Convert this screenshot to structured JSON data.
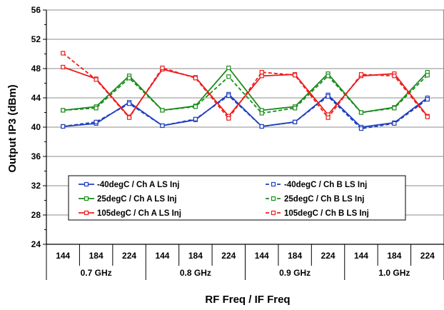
{
  "chart_data": {
    "type": "line",
    "title": "",
    "xlabel": "RF Freq / IF Freq",
    "ylabel": "Output IP3 (dBm)",
    "ylim": [
      24,
      56
    ],
    "yticks": [
      "24",
      "28",
      "32",
      "36",
      "40",
      "44",
      "48",
      "52",
      "56"
    ],
    "categories": [
      "144",
      "184",
      "224",
      "144",
      "184",
      "224",
      "144",
      "184",
      "224",
      "144",
      "184",
      "224"
    ],
    "groups": [
      {
        "label": "0.7 GHz",
        "span": 3
      },
      {
        "label": "0.8 GHz",
        "span": 3
      },
      {
        "label": "0.9 GHz",
        "span": 3
      },
      {
        "label": "1.0 GHz",
        "span": 3
      }
    ],
    "grid": "horizontal",
    "legend_position": "inside-bottom",
    "series": [
      {
        "name": "-40degC /  Ch A LS Inj",
        "color": "#1f3fbf",
        "dash": false,
        "values": [
          40.1,
          40.5,
          43.4,
          40.2,
          41.0,
          44.5,
          40.1,
          40.7,
          44.4,
          40.0,
          40.6,
          44.0
        ]
      },
      {
        "name": "-40degC /  Ch B LS Inj",
        "color": "#1f3fbf",
        "dash": true,
        "values": [
          40.1,
          40.7,
          43.2,
          40.2,
          41.1,
          44.3,
          40.1,
          40.7,
          44.2,
          39.8,
          40.5,
          43.8
        ]
      },
      {
        "name": "25degC /  Ch A LS Inj",
        "color": "#1c8c1c",
        "dash": false,
        "values": [
          42.3,
          42.8,
          47.0,
          42.3,
          42.9,
          48.1,
          42.3,
          42.8,
          47.3,
          42.0,
          42.7,
          47.5
        ]
      },
      {
        "name": "25degC /  Ch B LS Inj",
        "color": "#1c8c1c",
        "dash": true,
        "values": [
          42.3,
          42.6,
          46.7,
          42.3,
          42.8,
          46.9,
          41.9,
          42.6,
          47.0,
          42.0,
          42.6,
          47.1
        ]
      },
      {
        "name": "105degC /  Ch A LS Inj",
        "color": "#ee1c1c",
        "dash": false,
        "values": [
          48.2,
          46.6,
          41.4,
          47.9,
          46.8,
          41.5,
          47.0,
          47.2,
          41.7,
          47.0,
          47.3,
          41.5
        ]
      },
      {
        "name": "105degC /  Ch B LS Inj",
        "color": "#ee1c1c",
        "dash": true,
        "values": [
          50.1,
          46.5,
          41.3,
          48.1,
          46.7,
          41.2,
          47.5,
          47.1,
          41.3,
          47.2,
          47.0,
          41.4
        ]
      }
    ]
  }
}
